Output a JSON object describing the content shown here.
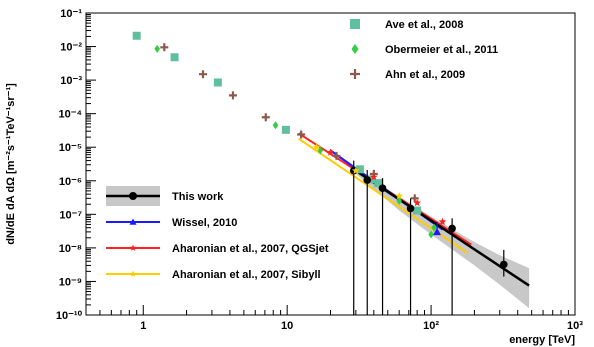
{
  "chart_data": {
    "type": "scatter",
    "xlabel": "energy [TeV]",
    "ylabel": "dN/dE dA dΩ [m⁻²s⁻¹TeV⁻¹sr⁻¹]",
    "x_scale": "log",
    "y_scale": "log",
    "xlim": [
      0.4,
      1000
    ],
    "ylim": [
      1e-10,
      0.1
    ],
    "x_ticks": [
      {
        "value": 1,
        "label": "1"
      },
      {
        "value": 10,
        "label": "10"
      },
      {
        "value": 100,
        "label": "10²"
      },
      {
        "value": 1000,
        "label": "10³"
      }
    ],
    "y_ticks": [
      {
        "exp": -1,
        "label": "10⁻¹"
      },
      {
        "exp": -2,
        "label": "10⁻²"
      },
      {
        "exp": -3,
        "label": "10⁻³"
      },
      {
        "exp": -4,
        "label": "10⁻⁴"
      },
      {
        "exp": -5,
        "label": "10⁻⁵"
      },
      {
        "exp": -6,
        "label": "10⁻⁶"
      },
      {
        "exp": -7,
        "label": "10⁻⁷"
      },
      {
        "exp": -8,
        "label": "10⁻⁸"
      },
      {
        "exp": -9,
        "label": "10⁻⁹"
      },
      {
        "exp": -10,
        "label": "10⁻¹⁰"
      }
    ],
    "series": [
      {
        "name": "Ave et al., 2008",
        "marker": "square",
        "color": "#5fbf9f",
        "points": [
          {
            "x": 0.9,
            "y": 0.021
          },
          {
            "x": 1.65,
            "y": 0.0048
          },
          {
            "x": 3.3,
            "y": 0.00085
          },
          {
            "x": 9.8,
            "y": 3.3e-05
          },
          {
            "x": 32,
            "y": 2.2e-06
          },
          {
            "x": 38,
            "y": 1.1e-06
          },
          {
            "x": 43,
            "y": 8.5e-07
          },
          {
            "x": 80,
            "y": 1.3e-07
          }
        ]
      },
      {
        "name": "Obermeier et al., 2011",
        "marker": "diamond",
        "color": "#33cc44",
        "points": [
          {
            "x": 1.25,
            "y": 0.0085
          },
          {
            "x": 8.3,
            "y": 4.5e-05
          },
          {
            "x": 17,
            "y": 8e-06
          },
          {
            "x": 60,
            "y": 2.5e-07
          },
          {
            "x": 100,
            "y": 2.5e-08
          },
          {
            "x": 105,
            "y": 4e-08
          }
        ]
      },
      {
        "name": "Ahn et al., 2009",
        "marker": "cross",
        "color": "#8b5a4a",
        "points": [
          {
            "x": 1.4,
            "y": 0.0095
          },
          {
            "x": 2.6,
            "y": 0.0015
          },
          {
            "x": 4.2,
            "y": 0.00035
          },
          {
            "x": 7.1,
            "y": 7.8e-05
          },
          {
            "x": 12.5,
            "y": 2.4e-05
          },
          {
            "x": 22,
            "y": 5.5e-06
          },
          {
            "x": 40,
            "y": 1.6e-06
          },
          {
            "x": 77,
            "y": 3e-07
          }
        ]
      },
      {
        "name": "This work",
        "marker": "circle",
        "color": "#000000",
        "band_color": "#c8c8c8",
        "fit": [
          {
            "x": 30,
            "y": 2e-06
          },
          {
            "x": 480,
            "y": 7.5e-10
          }
        ],
        "band_upper": [
          {
            "x": 30,
            "y": 2.4e-06
          },
          {
            "x": 60,
            "y": 3.3e-07
          },
          {
            "x": 100,
            "y": 8.5e-08
          },
          {
            "x": 200,
            "y": 1.5e-08
          },
          {
            "x": 300,
            "y": 6e-09
          },
          {
            "x": 480,
            "y": 2.5e-09
          }
        ],
        "band_lower": [
          {
            "x": 480,
            "y": 1.6e-10
          },
          {
            "x": 300,
            "y": 8e-10
          },
          {
            "x": 200,
            "y": 3e-09
          },
          {
            "x": 100,
            "y": 2.5e-08
          },
          {
            "x": 60,
            "y": 1.3e-07
          },
          {
            "x": 30,
            "y": 1.6e-06
          }
        ],
        "points": [
          {
            "x": 29,
            "y": 2e-06,
            "yerr_lo": 2e-06,
            "yerr_hi": 2e-06
          },
          {
            "x": 36,
            "y": 1.05e-06,
            "yerr_lo": 1.05e-06,
            "yerr_hi": 1.05e-06
          },
          {
            "x": 46,
            "y": 6e-07,
            "yerr_lo": 6e-07,
            "yerr_hi": 6e-07
          },
          {
            "x": 72,
            "y": 1.5e-07,
            "yerr_lo": 1.5e-07,
            "yerr_hi": 1.5e-07
          },
          {
            "x": 140,
            "y": 3.8e-08,
            "yerr_lo": 3.8e-08,
            "yerr_hi": 3.8e-08
          },
          {
            "x": 320,
            "y": 3.2e-09,
            "yerr_lo": 1.8e-09,
            "yerr_hi": 5.5e-09
          }
        ]
      },
      {
        "name": "Wissel, 2010",
        "marker": "triangle",
        "color": "#1a1aff",
        "fit": [
          {
            "x": 20,
            "y": 8e-06
          },
          {
            "x": 120,
            "y": 3.5e-08
          }
        ],
        "points": [
          {
            "x": 110,
            "y": 3e-08,
            "yerr_lo": 1.2e-09,
            "yerr_hi": 3e-08
          }
        ]
      },
      {
        "name": "Aharonian et al., 2007, QGSjet",
        "marker": "star",
        "color": "#ff2020",
        "fit": [
          {
            "x": 12,
            "y": 2.6e-05
          },
          {
            "x": 190,
            "y": 1.25e-08
          }
        ],
        "points": [
          {
            "x": 20,
            "y": 7e-06
          },
          {
            "x": 40,
            "y": 1.3e-06
          },
          {
            "x": 80,
            "y": 2.2e-07
          },
          {
            "x": 120,
            "y": 6e-08
          }
        ]
      },
      {
        "name": "Aharonian et al., 2007, Sibyll",
        "marker": "star",
        "color": "#ffcc00",
        "fit": [
          {
            "x": 12,
            "y": 1.8e-05
          },
          {
            "x": 180,
            "y": 7e-09
          }
        ],
        "points": [
          {
            "x": 16,
            "y": 1e-05
          },
          {
            "x": 30,
            "y": 2e-06
          },
          {
            "x": 60,
            "y": 3.5e-07
          }
        ]
      }
    ],
    "legends": [
      {
        "position": "top-right",
        "entries": [
          "Ave et al., 2008",
          "Obermeier et al., 2011",
          "Ahn et al., 2009"
        ]
      },
      {
        "position": "bottom-left",
        "entries": [
          "This work",
          "Wissel, 2010",
          "Aharonian et al., 2007, QGSjet",
          "Aharonian et al., 2007, Sibyll"
        ]
      }
    ]
  }
}
